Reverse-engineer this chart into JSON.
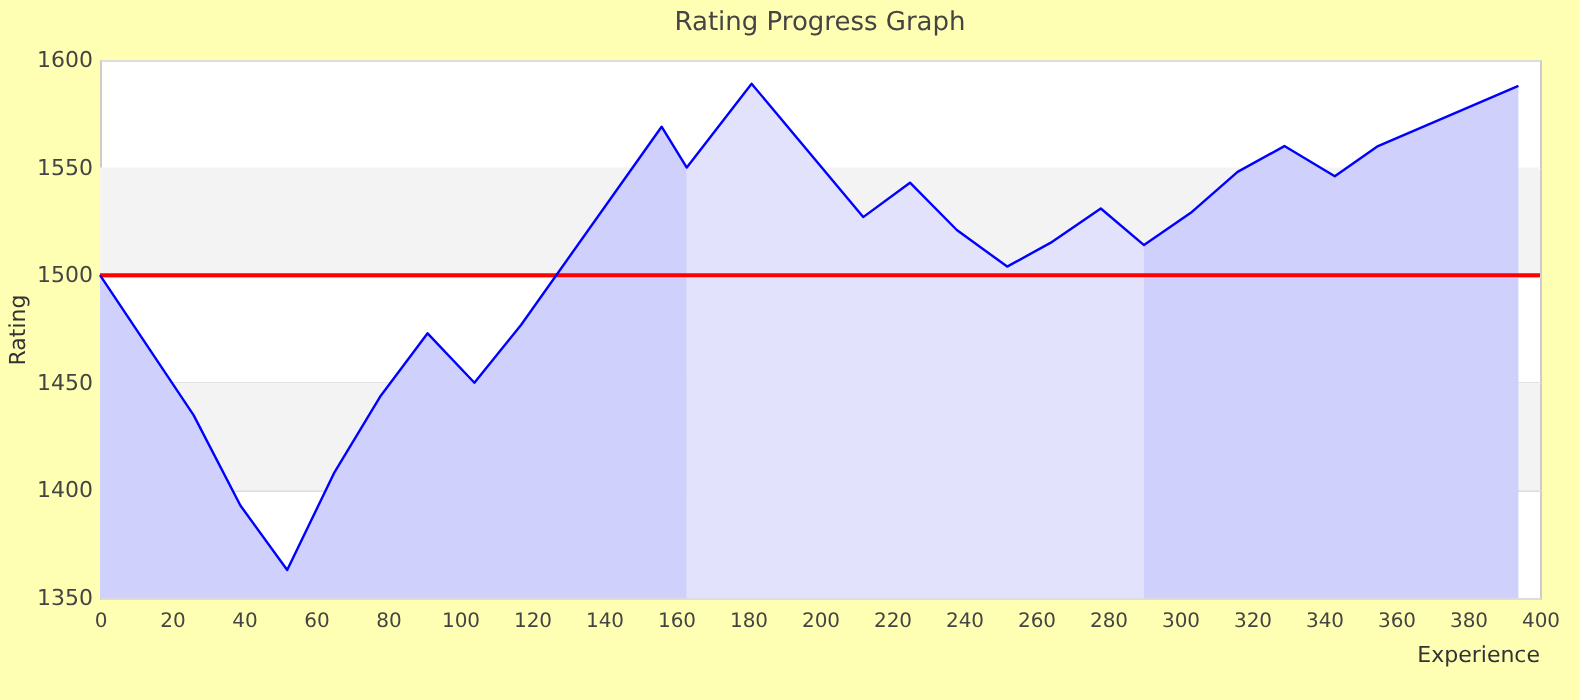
{
  "chart_data": {
    "type": "area",
    "title": "Rating Progress Graph",
    "xlabel": "Experience",
    "ylabel": "Rating",
    "xlim": [
      0,
      400
    ],
    "xticks": [
      0,
      20,
      40,
      60,
      80,
      100,
      120,
      140,
      160,
      180,
      200,
      220,
      240,
      260,
      280,
      300,
      320,
      340,
      360,
      380,
      400
    ],
    "ylim": [
      1350,
      1600
    ],
    "yticks": [
      1350,
      1400,
      1450,
      1500,
      1550,
      1600
    ],
    "grid": "y",
    "series": [
      {
        "color": "#d0d0fc",
        "x": [
          0,
          26,
          39,
          52,
          65,
          78,
          91,
          104,
          117,
          156,
          163
        ],
        "values": [
          1500,
          1435,
          1393,
          1363,
          1408,
          1444,
          1473,
          1450,
          1477,
          1569,
          1550
        ]
      },
      {
        "color": "#e2e2fc",
        "x": [
          163,
          181,
          212,
          225,
          238,
          252,
          264,
          278,
          290
        ],
        "values": [
          1550,
          1589,
          1527,
          1543,
          1521,
          1504,
          1515,
          1531,
          1514
        ]
      },
      {
        "color": "#d0d0fc",
        "x": [
          290,
          303,
          316,
          329,
          343,
          355,
          394
        ],
        "values": [
          1514,
          1529,
          1548,
          1560,
          1546,
          1560,
          1588
        ]
      },
      {
        "type": "line",
        "color": "#0000ff",
        "x": [
          0,
          26,
          39,
          52,
          65,
          78,
          91,
          104,
          117,
          156,
          163,
          181,
          212,
          225,
          238,
          252,
          264,
          278,
          290,
          303,
          316,
          329,
          343,
          355,
          394
        ],
        "values": [
          1500,
          1435,
          1393,
          1363,
          1408,
          1444,
          1473,
          1450,
          1477,
          1569,
          1550,
          1589,
          1527,
          1543,
          1521,
          1504,
          1515,
          1531,
          1514,
          1529,
          1548,
          1560,
          1546,
          1560,
          1588
        ]
      }
    ],
    "bands": [
      {
        "axis": "y",
        "from": 1400,
        "to": 1450,
        "color": "#f3f3f3"
      },
      {
        "axis": "y",
        "from": 1500,
        "to": 1550,
        "color": "#f3f3f3"
      }
    ],
    "ref_lines": [
      {
        "axis": "y",
        "value": 1500,
        "color": "#ff0000"
      }
    ]
  }
}
